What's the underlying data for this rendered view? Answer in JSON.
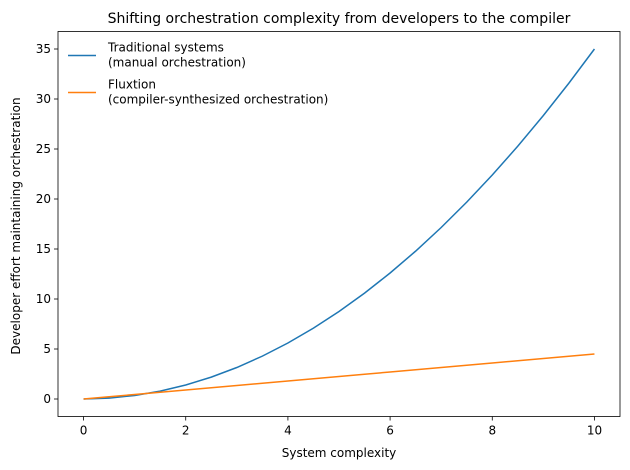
{
  "chart_data": {
    "type": "line",
    "title": "Shifting orchestration complexity from developers to the compiler",
    "xlabel": "System complexity",
    "ylabel": "Developer effort maintaining orchestration",
    "x": [
      0,
      0.5,
      1,
      1.5,
      2,
      2.5,
      3,
      3.5,
      4,
      4.5,
      5,
      5.5,
      6,
      6.5,
      7,
      7.5,
      8,
      8.5,
      9,
      9.5,
      10
    ],
    "series": [
      {
        "name": "Traditional systems\n(manual orchestration)",
        "color": "#1f77b4",
        "values": [
          0,
          0.0875,
          0.35,
          0.7875,
          1.4,
          2.1875,
          3.15,
          4.2875,
          5.6,
          7.0875,
          8.75,
          10.5875,
          12.6,
          14.7875,
          17.15,
          19.6875,
          22.4,
          25.2875,
          28.35,
          31.5875,
          35
        ]
      },
      {
        "name": "Fluxtion\n(compiler-synthesized orchestration)",
        "color": "#ff7f0e",
        "values": [
          0,
          0.225,
          0.45,
          0.675,
          0.9,
          1.125,
          1.35,
          1.575,
          1.8,
          2.025,
          2.25,
          2.475,
          2.7,
          2.925,
          3.15,
          3.375,
          3.6,
          3.825,
          4.05,
          4.275,
          4.5
        ]
      }
    ],
    "xlim": [
      -0.5,
      10.5
    ],
    "xticks": [
      0,
      2,
      4,
      6,
      8,
      10
    ],
    "ylim": [
      -1.75,
      36.75
    ],
    "yticks": [
      0,
      5,
      10,
      15,
      20,
      25,
      30,
      35
    ],
    "legend": "upper left"
  }
}
